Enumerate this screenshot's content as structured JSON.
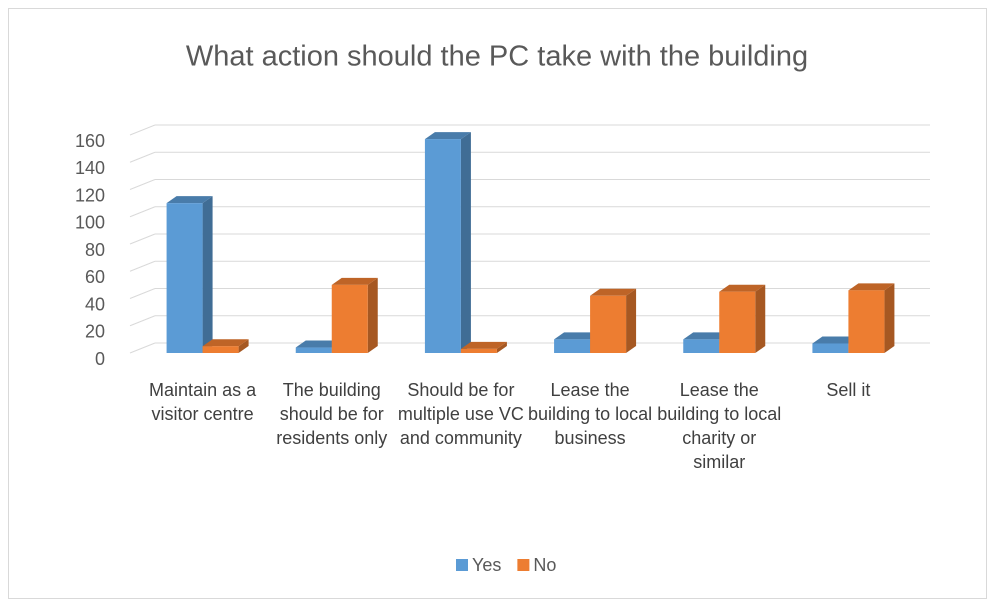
{
  "chart_data": {
    "type": "bar3d",
    "title": "What action should the PC take with the building",
    "categories": [
      "Maintain as a visitor centre",
      "The building should be for residents only",
      "Should be for multiple use VC and community",
      "Lease the building to local business",
      "Lease the building to local charity or similar",
      "Sell it"
    ],
    "series": [
      {
        "name": "Yes",
        "color": "#5b9bd5",
        "values": [
          110,
          4,
          157,
          10,
          10,
          7
        ]
      },
      {
        "name": "No",
        "color": "#ed7d31",
        "values": [
          5,
          50,
          3,
          42,
          45,
          46
        ]
      }
    ],
    "ylim": [
      0,
      160
    ],
    "yticks": [
      0,
      20,
      40,
      60,
      80,
      100,
      120,
      140,
      160
    ],
    "grid": true,
    "legend": "bottom"
  }
}
